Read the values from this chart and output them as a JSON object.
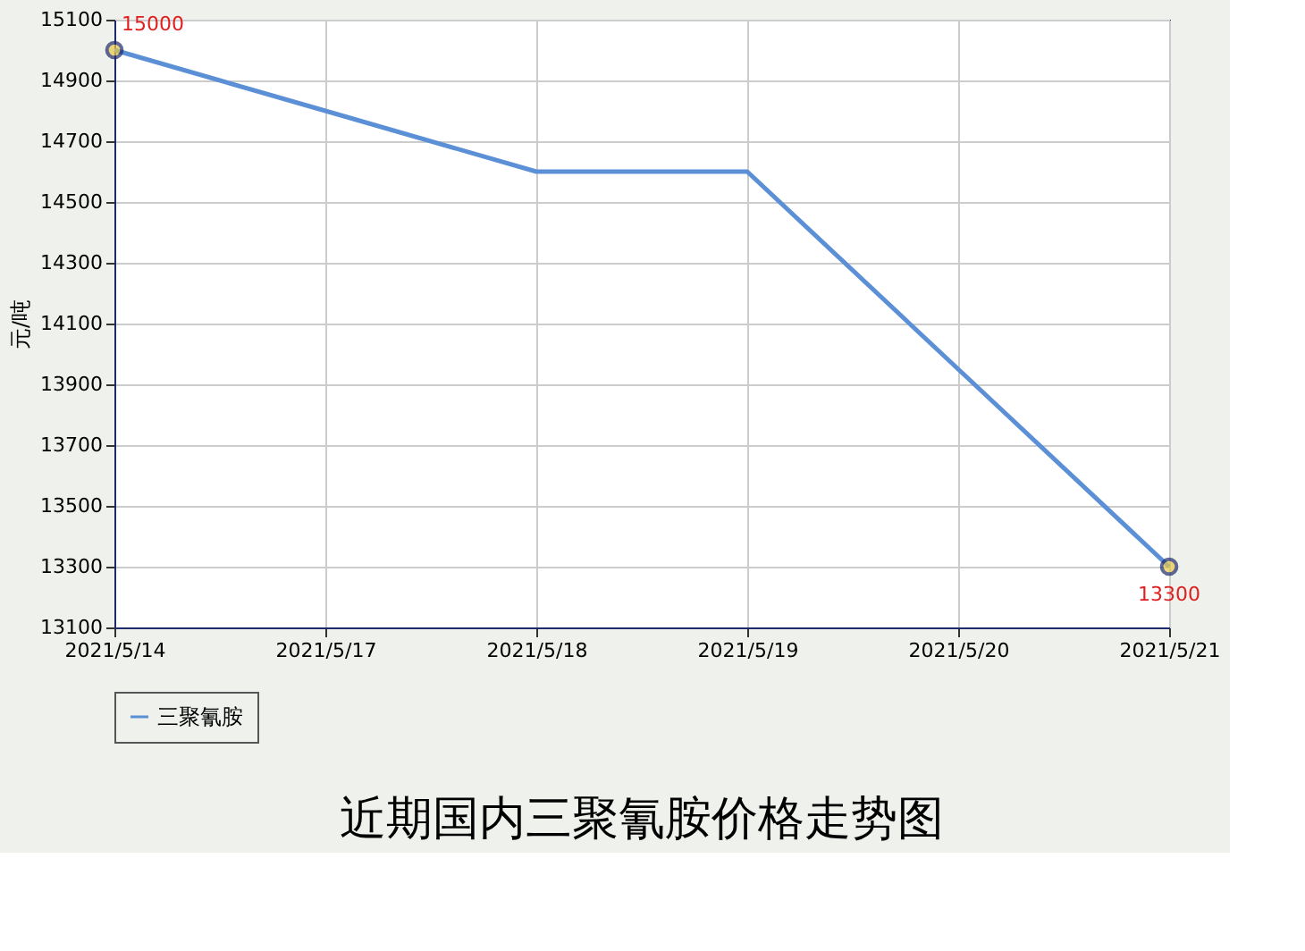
{
  "chart_data": {
    "type": "line",
    "title": "近期国内三聚氰胺价格走势图",
    "ylabel": "元/吨",
    "categories": [
      "2021/5/14",
      "2021/5/17",
      "2021/5/18",
      "2021/5/19",
      "2021/5/20",
      "2021/5/21"
    ],
    "series": [
      {
        "name": "三聚氰胺",
        "color": "#5b8fd6",
        "values": [
          15000,
          14800,
          14600,
          14600,
          13950,
          13300
        ],
        "value_labels": [
          "15000",
          null,
          null,
          null,
          null,
          "13300"
        ]
      }
    ],
    "ylim": [
      13100,
      15100
    ],
    "yticks": [
      13100,
      13300,
      13500,
      13700,
      13900,
      14100,
      14300,
      14500,
      14700,
      14900,
      15100
    ],
    "grid": true,
    "legend": "bottom",
    "line_style": "solid"
  }
}
